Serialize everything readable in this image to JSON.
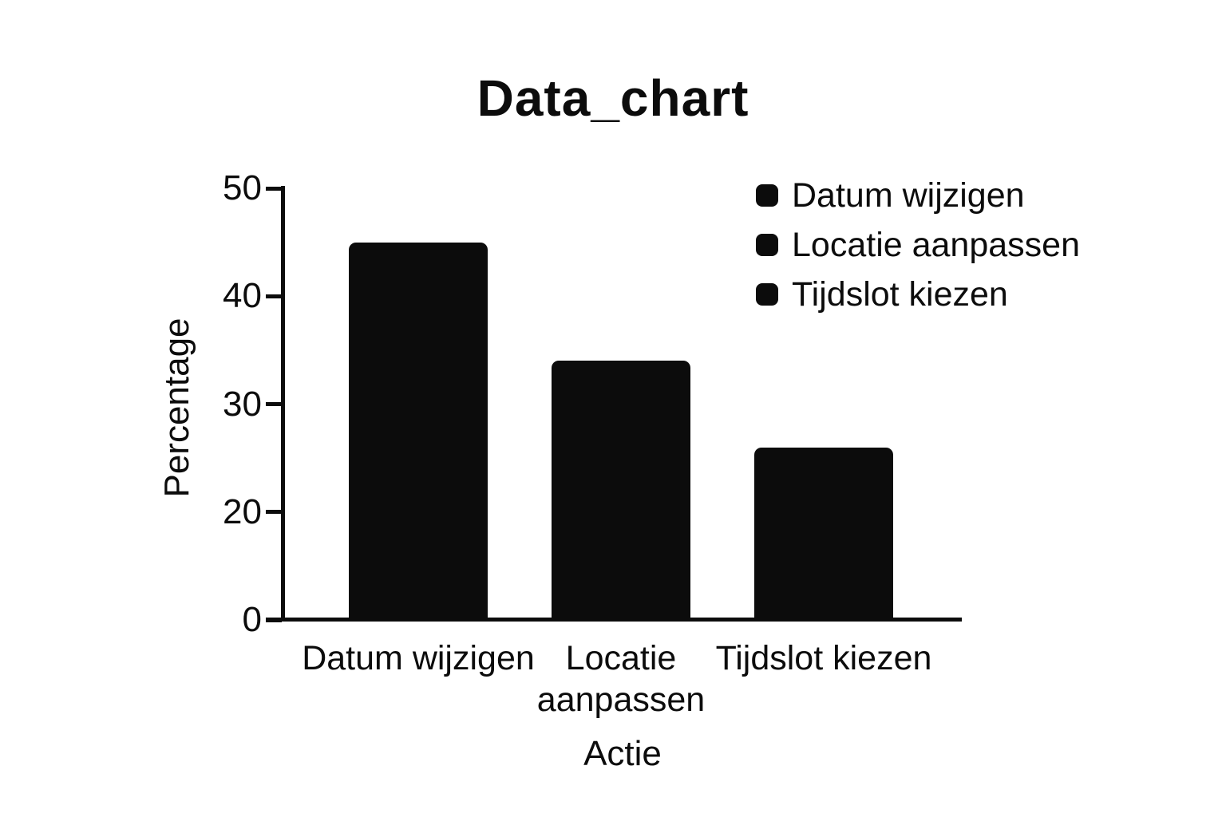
{
  "page": {
    "background": "#ffffff"
  },
  "chart_data": {
    "type": "bar",
    "title": "Data_chart",
    "xlabel": "Actie",
    "ylabel": "Percentage",
    "categories": [
      "Datum wijzigen",
      "Locatie aanpassen",
      "Tijdslot kiezen"
    ],
    "values": [
      45,
      34,
      26
    ],
    "y_ticks": [
      0,
      20,
      30,
      40,
      50
    ],
    "y_ticks_evenly_spaced": true,
    "ylim": [
      0,
      50
    ],
    "grid": false,
    "legend": {
      "position": "upper-right",
      "entries": [
        "Datum wijzigen",
        "Locatie aanpassen",
        "Tijdslot kiezen"
      ]
    },
    "colors": {
      "bar": "#0c0c0c",
      "ink": "#0c0c0c",
      "background": "#ffffff"
    }
  }
}
